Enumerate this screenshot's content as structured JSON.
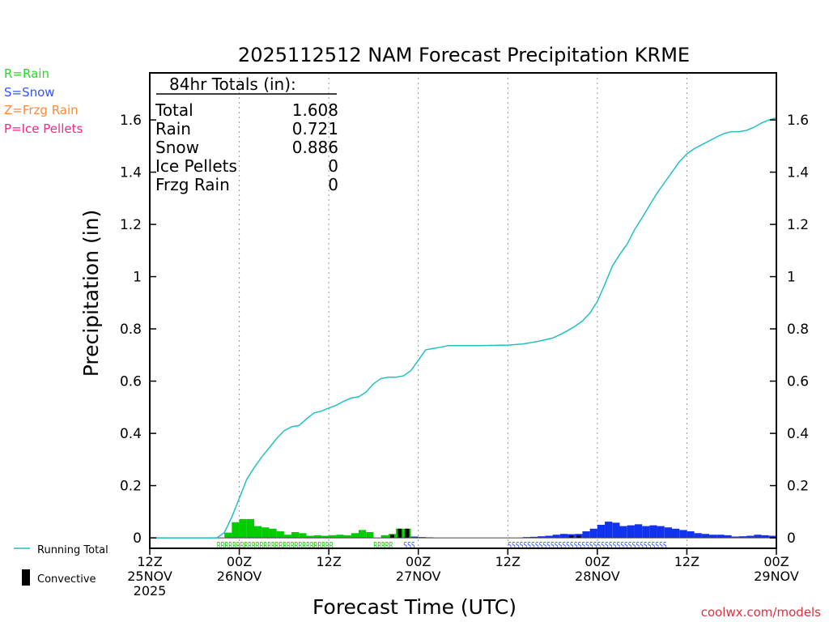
{
  "chart_data": {
    "type": "bar",
    "title": "2025112512 NAM Forecast Precipitation KRME",
    "xlabel": "Forecast Time (UTC)",
    "ylabel": "Precipitation (in)",
    "ylim": [
      -0.04,
      1.78
    ],
    "xlim_hours": [
      0,
      84
    ],
    "yticks": [
      "0",
      "0.2",
      "0.4",
      "0.6",
      "0.8",
      "1",
      "1.2",
      "1.4",
      "1.6"
    ],
    "ytick_values": [
      0,
      0.2,
      0.4,
      0.6,
      0.8,
      1.0,
      1.2,
      1.4,
      1.6
    ],
    "xticks": [
      {
        "hour": 0,
        "lines": [
          "12Z",
          "25NOV",
          "2025"
        ]
      },
      {
        "hour": 12,
        "lines": [
          "00Z",
          "26NOV"
        ]
      },
      {
        "hour": 24,
        "lines": [
          "12Z"
        ]
      },
      {
        "hour": 36,
        "lines": [
          "00Z",
          "27NOV"
        ]
      },
      {
        "hour": 48,
        "lines": [
          "12Z"
        ]
      },
      {
        "hour": 60,
        "lines": [
          "00Z",
          "28NOV"
        ]
      },
      {
        "hour": 72,
        "lines": [
          "12Z"
        ]
      },
      {
        "hour": 84,
        "lines": [
          "00Z",
          "29NOV"
        ]
      }
    ],
    "legend": {
      "position": "left",
      "types": [
        {
          "label": "R=Rain",
          "color": "#22dd22"
        },
        {
          "label": "S=Snow",
          "color": "#3355ff"
        },
        {
          "label": "Z=Frzg Rain",
          "color": "#ff8833"
        },
        {
          "label": "P=Ice Pellets",
          "color": "#ff2288"
        }
      ],
      "running_total_label": "Running Total",
      "convective_label": "Convective"
    },
    "totals": {
      "header": "84hr Totals (in):",
      "rows": [
        {
          "label": "Total",
          "value": "1.608"
        },
        {
          "label": "Rain",
          "value": "0.721"
        },
        {
          "label": "Snow",
          "value": "0.886"
        },
        {
          "label": "Ice Pellets",
          "value": "0"
        },
        {
          "label": "Frzg Rain",
          "value": "0"
        }
      ]
    },
    "series": [
      {
        "name": "Rain",
        "color": "#00cc00",
        "bars": [
          {
            "hour": 10,
            "value": 0.02
          },
          {
            "hour": 11,
            "value": 0.06
          },
          {
            "hour": 12,
            "value": 0.072
          },
          {
            "hour": 13,
            "value": 0.072
          },
          {
            "hour": 14,
            "value": 0.045
          },
          {
            "hour": 15,
            "value": 0.04
          },
          {
            "hour": 16,
            "value": 0.035
          },
          {
            "hour": 17,
            "value": 0.025
          },
          {
            "hour": 18,
            "value": 0.012
          },
          {
            "hour": 19,
            "value": 0.022
          },
          {
            "hour": 20,
            "value": 0.018
          },
          {
            "hour": 21,
            "value": 0.008
          },
          {
            "hour": 22,
            "value": 0.01
          },
          {
            "hour": 23,
            "value": 0.008
          },
          {
            "hour": 24,
            "value": 0.01
          },
          {
            "hour": 25,
            "value": 0.012
          },
          {
            "hour": 26,
            "value": 0.01
          },
          {
            "hour": 27,
            "value": 0.018
          },
          {
            "hour": 28,
            "value": 0.03
          },
          {
            "hour": 29,
            "value": 0.022
          },
          {
            "hour": 31,
            "value": 0.01
          },
          {
            "hour": 32,
            "value": 0.015
          },
          {
            "hour": 33,
            "value": 0.035
          },
          {
            "hour": 34,
            "value": 0.035
          }
        ]
      },
      {
        "name": "Snow",
        "color": "#1133ee",
        "bars": [
          {
            "hour": 35,
            "value": 0.005
          },
          {
            "hour": 36,
            "value": 0.003
          },
          {
            "hour": 37,
            "value": 0.002
          },
          {
            "hour": 50,
            "value": 0.003
          },
          {
            "hour": 51,
            "value": 0.004
          },
          {
            "hour": 52,
            "value": 0.006
          },
          {
            "hour": 53,
            "value": 0.008
          },
          {
            "hour": 54,
            "value": 0.012
          },
          {
            "hour": 55,
            "value": 0.015
          },
          {
            "hour": 56,
            "value": 0.014
          },
          {
            "hour": 57,
            "value": 0.015
          },
          {
            "hour": 58,
            "value": 0.025
          },
          {
            "hour": 59,
            "value": 0.035
          },
          {
            "hour": 60,
            "value": 0.05
          },
          {
            "hour": 61,
            "value": 0.062
          },
          {
            "hour": 62,
            "value": 0.058
          },
          {
            "hour": 63,
            "value": 0.045
          },
          {
            "hour": 64,
            "value": 0.048
          },
          {
            "hour": 65,
            "value": 0.052
          },
          {
            "hour": 66,
            "value": 0.045
          },
          {
            "hour": 67,
            "value": 0.048
          },
          {
            "hour": 68,
            "value": 0.045
          },
          {
            "hour": 69,
            "value": 0.04
          },
          {
            "hour": 70,
            "value": 0.035
          },
          {
            "hour": 71,
            "value": 0.03
          },
          {
            "hour": 72,
            "value": 0.025
          },
          {
            "hour": 73,
            "value": 0.018
          },
          {
            "hour": 74,
            "value": 0.015
          },
          {
            "hour": 75,
            "value": 0.012
          },
          {
            "hour": 76,
            "value": 0.012
          },
          {
            "hour": 77,
            "value": 0.01
          },
          {
            "hour": 78,
            "value": 0.005
          },
          {
            "hour": 79,
            "value": 0.006
          },
          {
            "hour": 80,
            "value": 0.008
          },
          {
            "hour": 81,
            "value": 0.012
          },
          {
            "hour": 82,
            "value": 0.01
          },
          {
            "hour": 83,
            "value": 0.008
          }
        ]
      },
      {
        "name": "Convective",
        "color": "#000000",
        "bars": [
          {
            "hour": 32,
            "value": 0.012
          },
          {
            "hour": 33,
            "value": 0.035
          },
          {
            "hour": 34,
            "value": 0.035
          },
          {
            "hour": 56,
            "value": 0.008
          },
          {
            "hour": 57,
            "value": 0.008
          }
        ]
      },
      {
        "name": "Running Total",
        "color": "#22c0c0",
        "points": [
          {
            "hour": 0,
            "value": 0
          },
          {
            "hour": 9,
            "value": 0
          },
          {
            "hour": 10,
            "value": 0.02
          },
          {
            "hour": 11,
            "value": 0.08
          },
          {
            "hour": 12,
            "value": 0.152
          },
          {
            "hour": 13,
            "value": 0.224
          },
          {
            "hour": 14,
            "value": 0.269
          },
          {
            "hour": 15,
            "value": 0.309
          },
          {
            "hour": 16,
            "value": 0.344
          },
          {
            "hour": 17,
            "value": 0.38
          },
          {
            "hour": 18,
            "value": 0.41
          },
          {
            "hour": 19,
            "value": 0.425
          },
          {
            "hour": 20,
            "value": 0.43
          },
          {
            "hour": 21,
            "value": 0.455
          },
          {
            "hour": 22,
            "value": 0.478
          },
          {
            "hour": 23,
            "value": 0.485
          },
          {
            "hour": 24,
            "value": 0.497
          },
          {
            "hour": 25,
            "value": 0.508
          },
          {
            "hour": 26,
            "value": 0.523
          },
          {
            "hour": 27,
            "value": 0.535
          },
          {
            "hour": 28,
            "value": 0.54
          },
          {
            "hour": 29,
            "value": 0.558
          },
          {
            "hour": 30,
            "value": 0.59
          },
          {
            "hour": 31,
            "value": 0.61
          },
          {
            "hour": 32,
            "value": 0.615
          },
          {
            "hour": 33,
            "value": 0.615
          },
          {
            "hour": 34,
            "value": 0.62
          },
          {
            "hour": 35,
            "value": 0.64
          },
          {
            "hour": 36,
            "value": 0.68
          },
          {
            "hour": 37,
            "value": 0.72
          },
          {
            "hour": 38,
            "value": 0.725
          },
          {
            "hour": 39,
            "value": 0.73
          },
          {
            "hour": 40,
            "value": 0.736
          },
          {
            "hour": 44,
            "value": 0.736
          },
          {
            "hour": 48,
            "value": 0.738
          },
          {
            "hour": 50,
            "value": 0.742
          },
          {
            "hour": 52,
            "value": 0.752
          },
          {
            "hour": 54,
            "value": 0.765
          },
          {
            "hour": 55,
            "value": 0.778
          },
          {
            "hour": 56,
            "value": 0.793
          },
          {
            "hour": 57,
            "value": 0.81
          },
          {
            "hour": 58,
            "value": 0.83
          },
          {
            "hour": 59,
            "value": 0.86
          },
          {
            "hour": 60,
            "value": 0.905
          },
          {
            "hour": 61,
            "value": 0.97
          },
          {
            "hour": 62,
            "value": 1.04
          },
          {
            "hour": 63,
            "value": 1.085
          },
          {
            "hour": 64,
            "value": 1.125
          },
          {
            "hour": 65,
            "value": 1.18
          },
          {
            "hour": 66,
            "value": 1.225
          },
          {
            "hour": 67,
            "value": 1.273
          },
          {
            "hour": 68,
            "value": 1.32
          },
          {
            "hour": 69,
            "value": 1.36
          },
          {
            "hour": 70,
            "value": 1.4
          },
          {
            "hour": 71,
            "value": 1.44
          },
          {
            "hour": 72,
            "value": 1.47
          },
          {
            "hour": 73,
            "value": 1.49
          },
          {
            "hour": 74,
            "value": 1.505
          },
          {
            "hour": 75,
            "value": 1.52
          },
          {
            "hour": 76,
            "value": 1.535
          },
          {
            "hour": 77,
            "value": 1.548
          },
          {
            "hour": 78,
            "value": 1.555
          },
          {
            "hour": 79,
            "value": 1.555
          },
          {
            "hour": 80,
            "value": 1.56
          },
          {
            "hour": 81,
            "value": 1.572
          },
          {
            "hour": 82,
            "value": 1.588
          },
          {
            "hour": 83,
            "value": 1.6
          },
          {
            "hour": 84,
            "value": 1.608
          }
        ]
      }
    ],
    "type_strips": [
      {
        "text": "RRRRRRRRRRRRRRRRRRRRRRRRRRRRRR",
        "start_hour": 9,
        "color": "#22cc22"
      },
      {
        "text": "RRRRR",
        "start_hour": 30,
        "color": "#22cc22"
      },
      {
        "text": "SSS",
        "start_hour": 34,
        "color": "#3355ff"
      },
      {
        "text": "SSSSSSSSSSSSSSSSSSSSSSSSSSSSSSSSSSSSSSSSS",
        "start_hour": 48,
        "color": "#3355ff"
      }
    ]
  },
  "credit": "coolwx.com/models"
}
